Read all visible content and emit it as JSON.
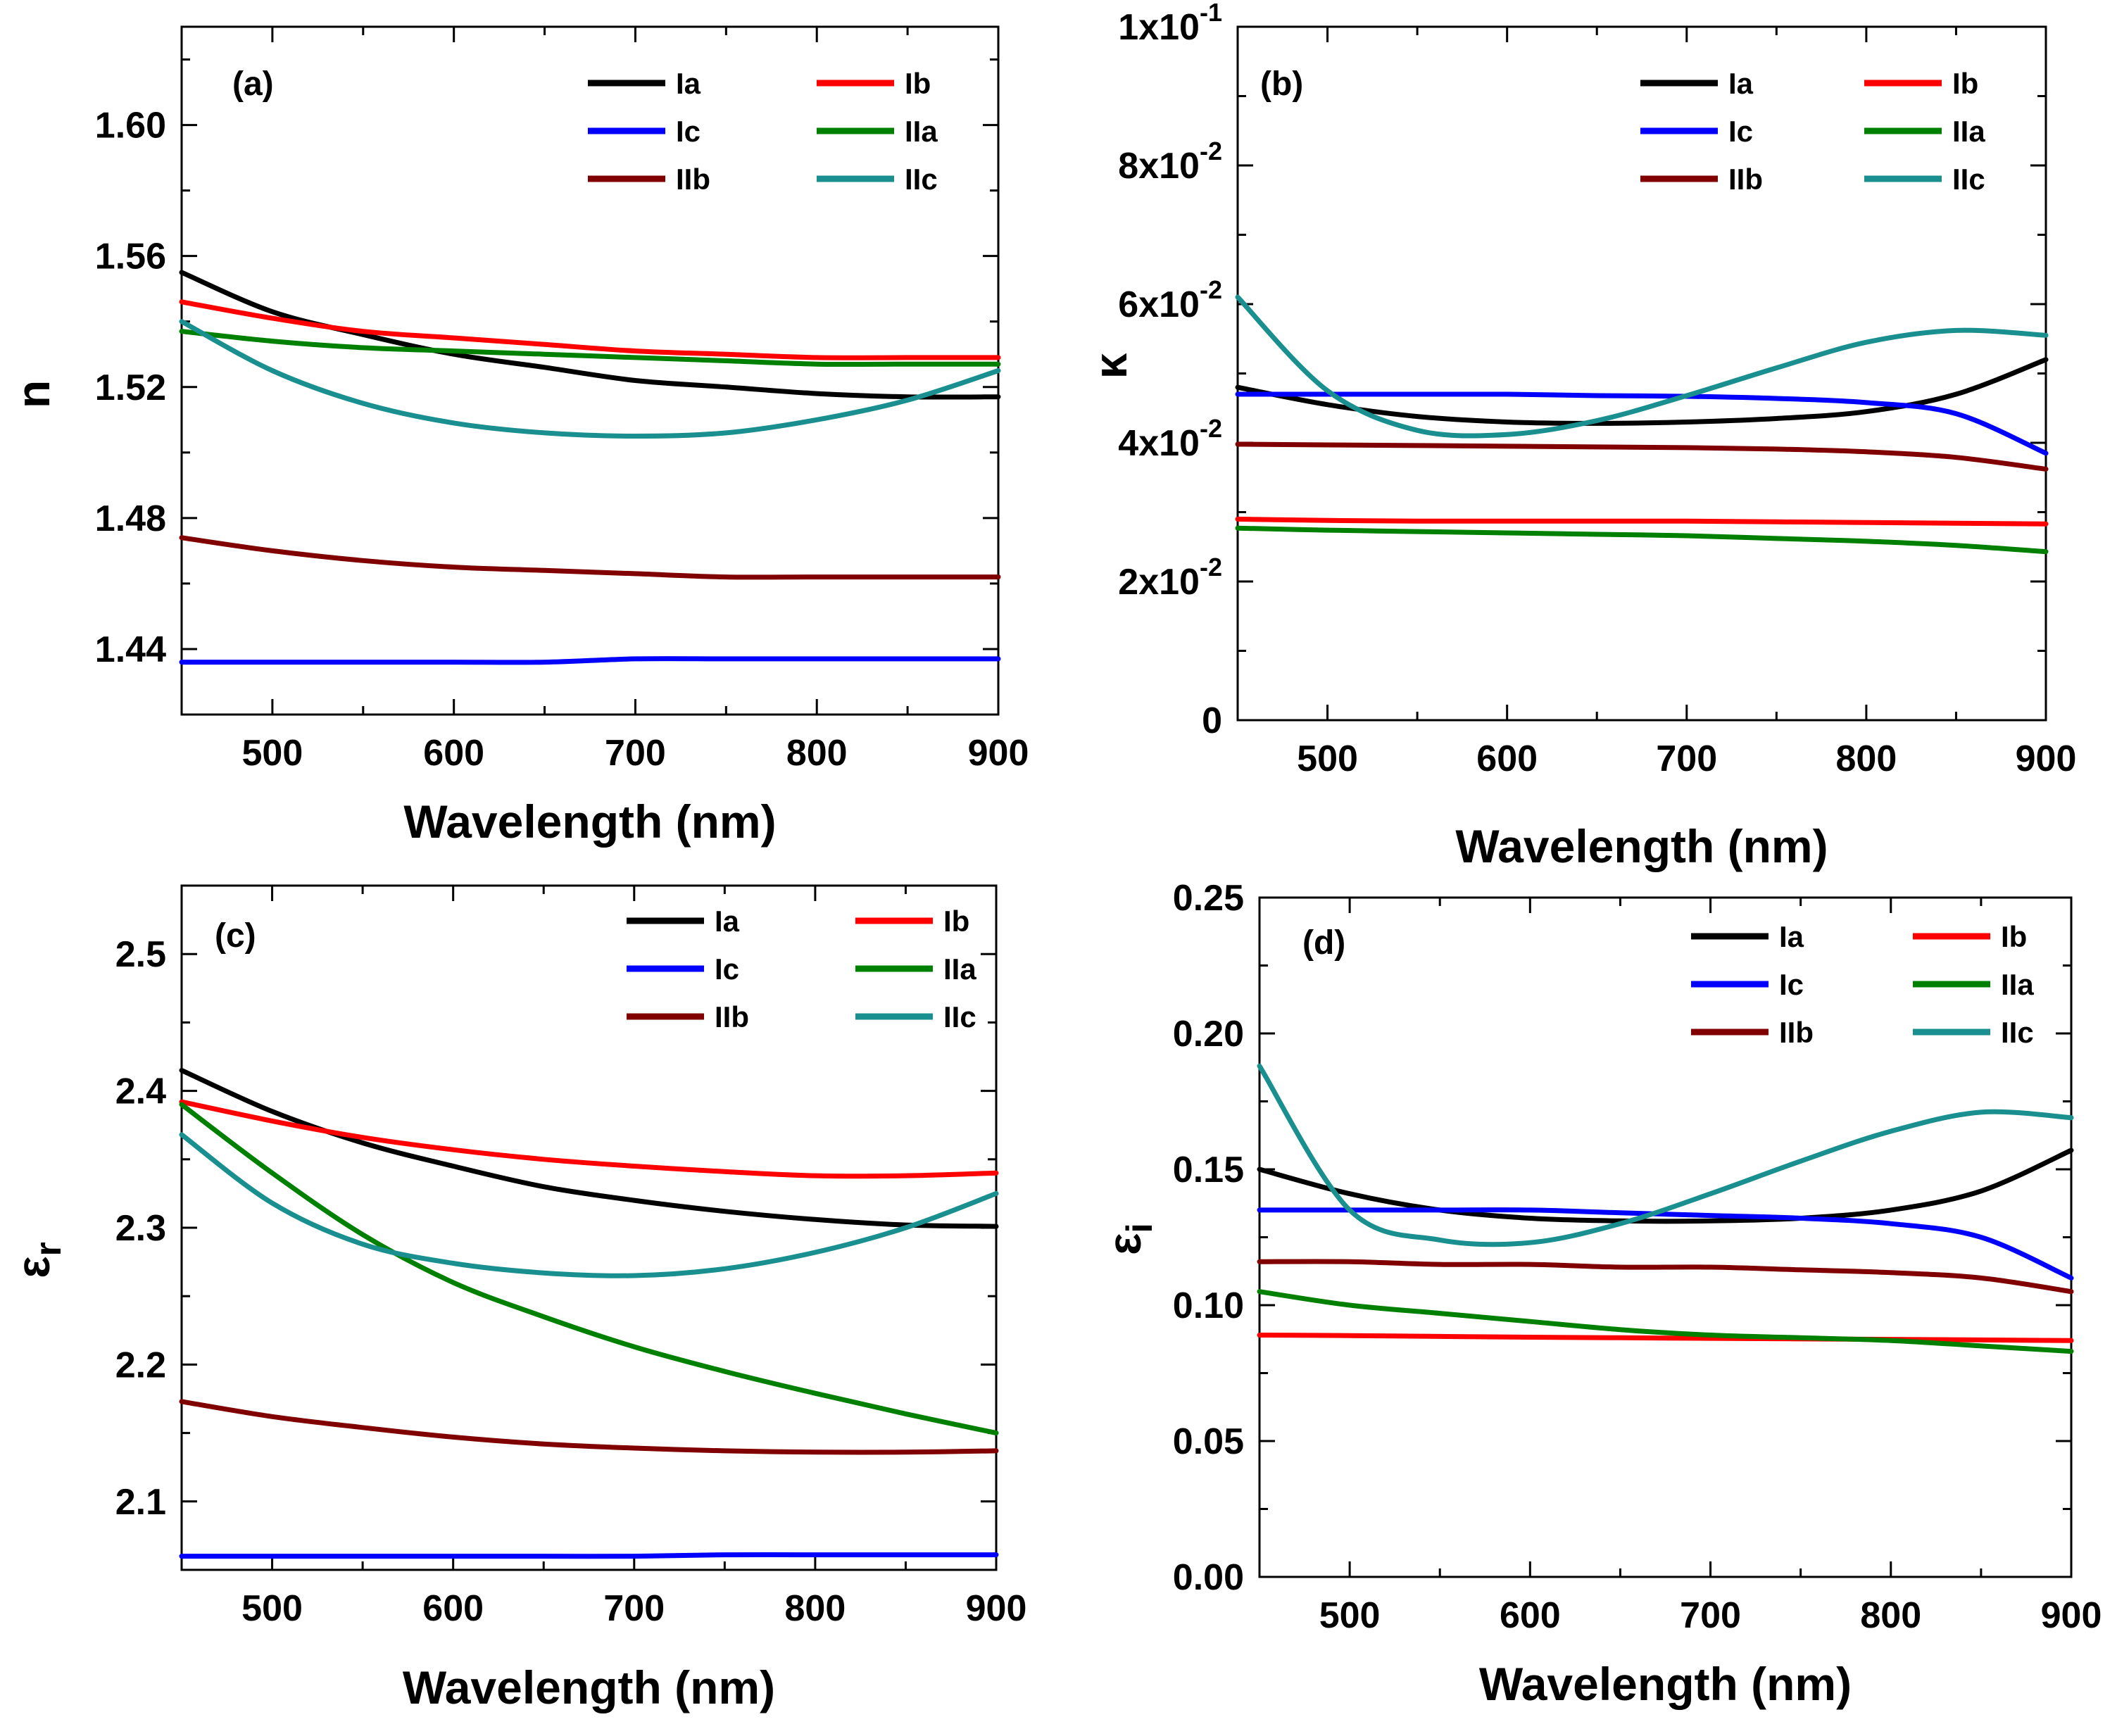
{
  "chart_data": [
    {
      "type": "line",
      "panel_label": "(a)",
      "xlabel": "Wavelength (nm)",
      "ylabel": "n",
      "xlim": [
        450,
        900
      ],
      "ylim": [
        1.42,
        1.63
      ],
      "xticks": [
        500,
        600,
        700,
        800,
        900
      ],
      "xtick_labels": [
        "500",
        "600",
        "700",
        "800",
        "900"
      ],
      "yticks": [
        1.44,
        1.48,
        1.52,
        1.56,
        1.6
      ],
      "ytick_labels": [
        "1.44",
        "1.48",
        "1.52",
        "1.56",
        "1.60"
      ],
      "legend_position": "top-right",
      "x": [
        450,
        500,
        550,
        600,
        650,
        700,
        750,
        800,
        850,
        900
      ],
      "series": [
        {
          "name": "Ia",
          "color": "#000000",
          "values": [
            1.555,
            1.543,
            1.536,
            1.53,
            1.526,
            1.522,
            1.52,
            1.518,
            1.517,
            1.517
          ]
        },
        {
          "name": "Ib",
          "color": "#ff0000",
          "values": [
            1.546,
            1.541,
            1.537,
            1.535,
            1.533,
            1.531,
            1.53,
            1.529,
            1.529,
            1.529
          ]
        },
        {
          "name": "Ic",
          "color": "#0000ff",
          "values": [
            1.436,
            1.436,
            1.436,
            1.436,
            1.436,
            1.437,
            1.437,
            1.437,
            1.437,
            1.437
          ]
        },
        {
          "name": "IIa",
          "color": "#008000",
          "values": [
            1.537,
            1.534,
            1.532,
            1.531,
            1.53,
            1.529,
            1.528,
            1.527,
            1.527,
            1.527
          ]
        },
        {
          "name": "IIb",
          "color": "#800000",
          "values": [
            1.474,
            1.47,
            1.467,
            1.465,
            1.464,
            1.463,
            1.462,
            1.462,
            1.462,
            1.462
          ]
        },
        {
          "name": "IIc",
          "color": "#1a8f8f",
          "values": [
            1.54,
            1.525,
            1.515,
            1.509,
            1.506,
            1.505,
            1.506,
            1.51,
            1.516,
            1.525
          ]
        }
      ]
    },
    {
      "type": "line",
      "panel_label": "(b)",
      "xlabel": "Wavelength (nm)",
      "ylabel": "κ",
      "xlim": [
        450,
        900
      ],
      "ylim": [
        0,
        0.1
      ],
      "xticks": [
        500,
        600,
        700,
        800,
        900
      ],
      "xtick_labels": [
        "500",
        "600",
        "700",
        "800",
        "900"
      ],
      "yticks": [
        0,
        0.02,
        0.04,
        0.06,
        0.08,
        0.1
      ],
      "ytick_labels": [
        {
          "base": "0",
          "exp": ""
        },
        {
          "base": "2x10",
          "exp": "-2"
        },
        {
          "base": "4x10",
          "exp": "-2"
        },
        {
          "base": "6x10",
          "exp": "-2"
        },
        {
          "base": "8x10",
          "exp": "-2"
        },
        {
          "base": "1x10",
          "exp": "-1"
        }
      ],
      "legend_position": "top-right",
      "x": [
        450,
        500,
        550,
        600,
        650,
        700,
        750,
        800,
        850,
        900
      ],
      "series": [
        {
          "name": "Ia",
          "color": "#000000",
          "values": [
            0.048,
            0.0455,
            0.0438,
            0.043,
            0.0428,
            0.043,
            0.0435,
            0.0445,
            0.047,
            0.052
          ]
        },
        {
          "name": "Ib",
          "color": "#ff0000",
          "values": [
            0.029,
            0.0288,
            0.0287,
            0.0287,
            0.0287,
            0.0287,
            0.0286,
            0.0285,
            0.0284,
            0.0283
          ]
        },
        {
          "name": "Ic",
          "color": "#0000ff",
          "values": [
            0.047,
            0.047,
            0.047,
            0.047,
            0.0468,
            0.0467,
            0.0464,
            0.0458,
            0.0442,
            0.0385
          ]
        },
        {
          "name": "IIa",
          "color": "#008000",
          "values": [
            0.0277,
            0.0274,
            0.0272,
            0.027,
            0.0268,
            0.0266,
            0.0262,
            0.0258,
            0.0252,
            0.0243
          ]
        },
        {
          "name": "IIb",
          "color": "#800000",
          "values": [
            0.0398,
            0.0397,
            0.0396,
            0.0395,
            0.0394,
            0.0393,
            0.0391,
            0.0387,
            0.0379,
            0.0362
          ]
        },
        {
          "name": "IIc",
          "color": "#1a8f8f",
          "values": [
            0.061,
            0.0475,
            0.0418,
            0.0412,
            0.0432,
            0.0468,
            0.0508,
            0.0545,
            0.0562,
            0.0555
          ]
        }
      ]
    },
    {
      "type": "line",
      "panel_label": "(c)",
      "xlabel": "Wavelength (nm)",
      "ylabel": "εr",
      "xlim": [
        450,
        900
      ],
      "ylim": [
        2.05,
        2.55
      ],
      "xticks": [
        500,
        600,
        700,
        800,
        900
      ],
      "xtick_labels": [
        "500",
        "600",
        "700",
        "800",
        "900"
      ],
      "yticks": [
        2.1,
        2.2,
        2.3,
        2.4,
        2.5
      ],
      "ytick_labels": [
        "2.1",
        "2.2",
        "2.3",
        "2.4",
        "2.5"
      ],
      "legend_position": "top-right",
      "x": [
        450,
        500,
        550,
        600,
        650,
        700,
        750,
        800,
        850,
        900
      ],
      "series": [
        {
          "name": "Ia",
          "color": "#000000",
          "values": [
            2.415,
            2.385,
            2.362,
            2.345,
            2.33,
            2.32,
            2.312,
            2.306,
            2.302,
            2.301
          ]
        },
        {
          "name": "Ib",
          "color": "#ff0000",
          "values": [
            2.392,
            2.378,
            2.366,
            2.357,
            2.35,
            2.345,
            2.341,
            2.338,
            2.338,
            2.34
          ]
        },
        {
          "name": "Ic",
          "color": "#0000ff",
          "values": [
            2.06,
            2.06,
            2.06,
            2.06,
            2.06,
            2.06,
            2.061,
            2.061,
            2.061,
            2.061
          ]
        },
        {
          "name": "IIa",
          "color": "#008000",
          "values": [
            2.39,
            2.34,
            2.295,
            2.26,
            2.235,
            2.213,
            2.195,
            2.179,
            2.164,
            2.15
          ]
        },
        {
          "name": "IIb",
          "color": "#800000",
          "values": [
            2.173,
            2.162,
            2.154,
            2.147,
            2.142,
            2.139,
            2.137,
            2.136,
            2.136,
            2.137
          ]
        },
        {
          "name": "IIc",
          "color": "#1a8f8f",
          "values": [
            2.368,
            2.318,
            2.288,
            2.274,
            2.267,
            2.265,
            2.27,
            2.282,
            2.3,
            2.325
          ]
        }
      ]
    },
    {
      "type": "line",
      "panel_label": "(d)",
      "xlabel": "Wavelength (nm)",
      "ylabel": "εi",
      "xlim": [
        450,
        900
      ],
      "ylim": [
        0,
        0.25
      ],
      "xticks": [
        500,
        600,
        700,
        800,
        900
      ],
      "xtick_labels": [
        "500",
        "600",
        "700",
        "800",
        "900"
      ],
      "yticks": [
        0,
        0.05,
        0.1,
        0.15,
        0.2,
        0.25
      ],
      "ytick_labels": [
        "0.00",
        "0.05",
        "0.10",
        "0.15",
        "0.20",
        "0.25"
      ],
      "legend_position": "top-right",
      "x": [
        450,
        500,
        550,
        600,
        650,
        700,
        750,
        800,
        850,
        900
      ],
      "series": [
        {
          "name": "Ia",
          "color": "#000000",
          "values": [
            0.15,
            0.141,
            0.135,
            0.132,
            0.131,
            0.131,
            0.132,
            0.135,
            0.142,
            0.157
          ]
        },
        {
          "name": "Ib",
          "color": "#ff0000",
          "values": [
            0.089,
            0.0888,
            0.0885,
            0.0882,
            0.088,
            0.0878,
            0.0876,
            0.0874,
            0.0872,
            0.087
          ]
        },
        {
          "name": "Ic",
          "color": "#0000ff",
          "values": [
            0.135,
            0.135,
            0.135,
            0.135,
            0.134,
            0.133,
            0.132,
            0.13,
            0.125,
            0.11
          ]
        },
        {
          "name": "IIa",
          "color": "#008000",
          "values": [
            0.105,
            0.1,
            0.097,
            0.094,
            0.091,
            0.089,
            0.088,
            0.087,
            0.085,
            0.083
          ]
        },
        {
          "name": "IIb",
          "color": "#800000",
          "values": [
            0.116,
            0.116,
            0.115,
            0.115,
            0.114,
            0.114,
            0.113,
            0.112,
            0.11,
            0.105
          ]
        },
        {
          "name": "IIc",
          "color": "#1a8f8f",
          "values": [
            0.188,
            0.135,
            0.124,
            0.123,
            0.13,
            0.141,
            0.153,
            0.164,
            0.171,
            0.169
          ]
        }
      ]
    }
  ]
}
